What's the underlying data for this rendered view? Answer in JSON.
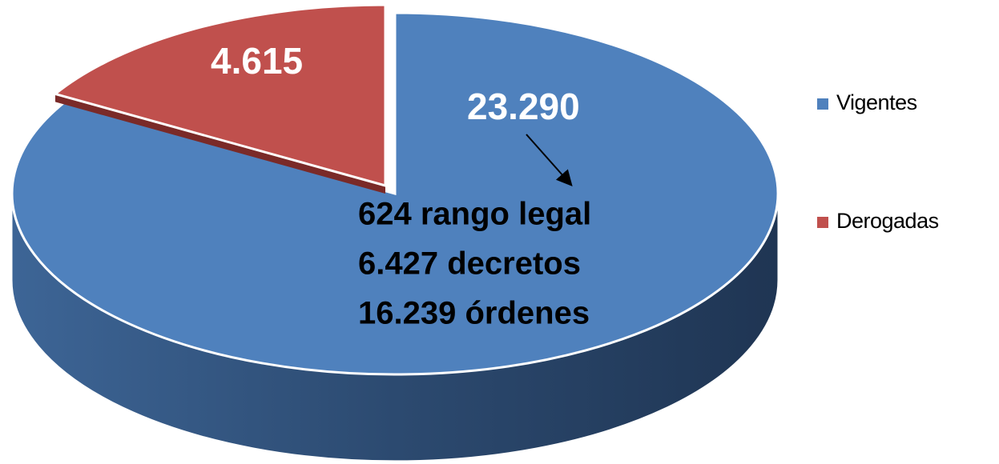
{
  "chart_data": {
    "type": "pie",
    "categories": [
      "Vigentes",
      "Derogadas"
    ],
    "values": [
      23290,
      4615
    ],
    "value_labels": [
      "23.290",
      "4.615"
    ],
    "colors": [
      "#4f81bd",
      "#c0504d"
    ],
    "annotations": [
      "624 rango legal",
      "6.427 decretos",
      "16.239 órdenes"
    ],
    "legend": "right"
  }
}
